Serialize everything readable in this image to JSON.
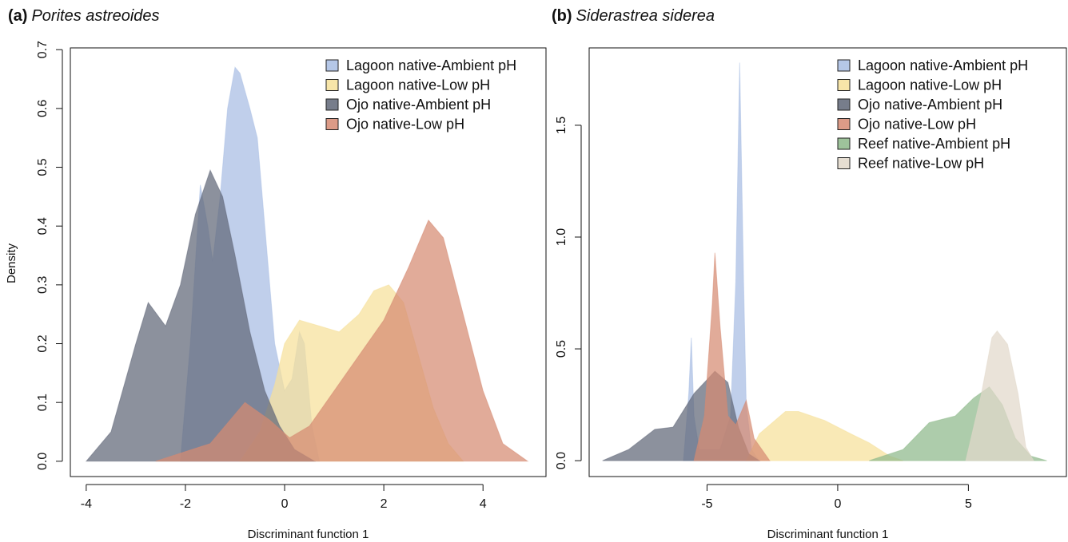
{
  "chart_data": [
    {
      "type": "area",
      "panel_label": "(a)",
      "title": "Porites astreoides",
      "xlabel": "Discriminant function 1",
      "ylabel": "Density",
      "xlim": [
        -4.32,
        5.27
      ],
      "ylim": [
        -0.026,
        0.703
      ],
      "xticks": [
        -4,
        -2,
        0,
        2,
        4
      ],
      "yticks": [
        {
          "value": 0,
          "label": "0.0"
        },
        0.1,
        0.2,
        0.3,
        0.4,
        0.5,
        0.6,
        0.7
      ],
      "legend": "upper right",
      "series": [
        {
          "name": "Lagoon native-Ambient pH",
          "color": "#a8bde3",
          "x": [
            -2.1,
            -1.9,
            -1.7,
            -1.55,
            -1.45,
            -1.3,
            -1.15,
            -1.0,
            -0.9,
            -0.7,
            -0.55,
            -0.4,
            -0.2,
            0,
            0.15,
            0.3,
            0.4,
            0.55,
            0.7
          ],
          "values": [
            0,
            0.2,
            0.47,
            0.4,
            0.34,
            0.45,
            0.6,
            0.67,
            0.66,
            0.6,
            0.55,
            0.4,
            0.2,
            0.12,
            0.14,
            0.22,
            0.2,
            0.06,
            0
          ]
        },
        {
          "name": "Lagoon native-Low pH",
          "color": "#f6e09a",
          "x": [
            -0.9,
            -0.5,
            -0.2,
            0,
            0.3,
            0.7,
            1.1,
            1.5,
            1.8,
            2.1,
            2.4,
            2.7,
            3.0,
            3.3,
            3.6
          ],
          "values": [
            0,
            0.05,
            0.13,
            0.2,
            0.24,
            0.23,
            0.22,
            0.25,
            0.29,
            0.3,
            0.27,
            0.18,
            0.09,
            0.03,
            0
          ]
        },
        {
          "name": "Ojo native-Ambient pH",
          "color": "#5f6677",
          "x": [
            -4,
            -3.5,
            -3,
            -2.75,
            -2.4,
            -2.1,
            -1.8,
            -1.5,
            -1.25,
            -1,
            -0.7,
            -0.4,
            -0.1,
            0.2,
            0.6
          ],
          "values": [
            0,
            0.05,
            0.2,
            0.27,
            0.23,
            0.3,
            0.42,
            0.495,
            0.45,
            0.35,
            0.22,
            0.12,
            0.06,
            0.02,
            0
          ]
        },
        {
          "name": "Ojo native-Low pH",
          "color": "#d68a72",
          "x": [
            -2.6,
            -1.5,
            -0.8,
            -0.3,
            0.1,
            0.5,
            1,
            1.5,
            2,
            2.5,
            2.9,
            3.2,
            3.6,
            4,
            4.4,
            4.9
          ],
          "values": [
            0,
            0.03,
            0.1,
            0.07,
            0.04,
            0.06,
            0.12,
            0.18,
            0.24,
            0.33,
            0.41,
            0.38,
            0.25,
            0.12,
            0.03,
            0
          ]
        }
      ]
    },
    {
      "type": "area",
      "panel_label": "(b)",
      "title": "Siderastrea siderea",
      "xlabel": "Discriminant function 1",
      "xlim": [
        -9.51,
        8.75
      ],
      "ylim": [
        -0.071,
        1.846
      ],
      "xticks": [
        -5,
        0,
        5
      ],
      "yticks": [
        {
          "value": 0,
          "label": "0.0"
        },
        0.5,
        {
          "value": 1,
          "label": "1.0"
        },
        1.5
      ],
      "legend": "upper right",
      "series": [
        {
          "name": "Lagoon native-Ambient pH",
          "color": "#a8bde3",
          "x": [
            -5.9,
            -5.7,
            -5.6,
            -5.5,
            -5.3,
            -4.5,
            -4.1,
            -3.9,
            -3.75,
            -3.6,
            -3.5,
            -3.3,
            -3
          ],
          "values": [
            0,
            0.3,
            0.55,
            0.2,
            0.05,
            0.05,
            0.2,
            0.8,
            1.78,
            0.8,
            0.25,
            0.05,
            0
          ]
        },
        {
          "name": "Lagoon native-Low pH",
          "color": "#f6e09a",
          "x": [
            -3.5,
            -3,
            -2,
            -1.5,
            -0.5,
            0.5,
            1.2,
            2,
            2.5
          ],
          "values": [
            0,
            0.12,
            0.22,
            0.22,
            0.18,
            0.12,
            0.08,
            0.02,
            0
          ]
        },
        {
          "name": "Ojo native-Ambient pH",
          "color": "#5f6677",
          "x": [
            -9,
            -8,
            -7,
            -6.3,
            -5.5,
            -4.7,
            -4.2,
            -3.8,
            -3.4,
            -3
          ],
          "values": [
            0,
            0.05,
            0.14,
            0.15,
            0.3,
            0.4,
            0.35,
            0.15,
            0.03,
            0
          ]
        },
        {
          "name": "Ojo native-Low pH",
          "color": "#d68a72",
          "x": [
            -5.5,
            -5.1,
            -4.8,
            -4.7,
            -4.5,
            -4.2,
            -3.9,
            -3.5,
            -3.2,
            -2.6
          ],
          "values": [
            0,
            0.2,
            0.7,
            0.93,
            0.6,
            0.2,
            0.16,
            0.27,
            0.1,
            0
          ]
        },
        {
          "name": "Reef native-Ambient pH",
          "color": "#8db98a",
          "x": [
            1.2,
            2.5,
            3.5,
            4.5,
            5.2,
            5.8,
            6.3,
            6.8,
            7.4,
            8
          ],
          "values": [
            0,
            0.05,
            0.17,
            0.2,
            0.28,
            0.33,
            0.25,
            0.1,
            0.02,
            0
          ]
        },
        {
          "name": "Reef native-Low pH",
          "color": "#e2d8ca",
          "x": [
            4.9,
            5.5,
            5.9,
            6.1,
            6.5,
            6.9,
            7.2,
            7.5
          ],
          "values": [
            0,
            0.3,
            0.55,
            0.58,
            0.52,
            0.3,
            0.06,
            0
          ]
        }
      ]
    }
  ]
}
